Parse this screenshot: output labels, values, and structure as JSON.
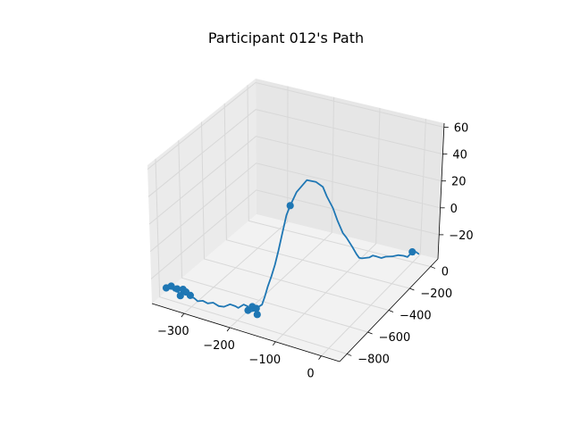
{
  "chart_data": {
    "type": "line3d",
    "title": "Participant 012's Path",
    "xlabel": "",
    "ylabel": "",
    "zlabel": "",
    "xlim": [
      -370,
      40
    ],
    "ylim": [
      -870,
      70
    ],
    "zlim": [
      -38,
      63
    ],
    "xticks": [
      -300,
      -200,
      -100,
      0
    ],
    "yticks": [
      0,
      -200,
      -400,
      -600,
      -800
    ],
    "zticks": [
      60,
      40,
      20,
      0,
      -20
    ],
    "grid": true,
    "colors": {
      "line": "#1f77b4",
      "pane": "#f2f2f2",
      "grid": "#d8d8d8"
    },
    "series": [
      {
        "x": [
          -350,
          -343,
          -335,
          -330,
          -322,
          -318,
          -312,
          -308,
          -300,
          -292,
          -285,
          -275,
          -265,
          -255,
          -245,
          -235,
          -225,
          -215,
          -210,
          -200,
          -193,
          -187,
          -180,
          -172,
          -165,
          -160,
          -155,
          -150,
          -145,
          -140,
          -135,
          -130,
          -126,
          -120,
          -110,
          -103,
          -98,
          -95,
          -90,
          -86,
          -80,
          -76,
          -70,
          -66,
          -63,
          -60,
          -55,
          -50,
          -45,
          -40,
          -32,
          -25,
          -15,
          -5,
          2,
          8,
          12,
          16,
          14,
          20,
          25
        ],
        "y": [
          -820,
          -815,
          -812,
          -818,
          -814,
          -820,
          -815,
          -819,
          -812,
          -810,
          -805,
          -800,
          -798,
          -790,
          -782,
          -775,
          -762,
          -754,
          -750,
          -742,
          -736,
          -740,
          -735,
          -730,
          -720,
          -712,
          -705,
          -690,
          -675,
          -660,
          -640,
          -620,
          -600,
          -565,
          -510,
          -460,
          -420,
          -400,
          -370,
          -350,
          -330,
          -315,
          -290,
          -272,
          -262,
          -250,
          -238,
          -225,
          -212,
          -200,
          -190,
          -180,
          -162,
          -148,
          -130,
          -120,
          -105,
          -95,
          -100,
          -92,
          -90
        ],
        "z": [
          -28,
          -26,
          -29,
          -27,
          -30,
          -28,
          -27,
          -26,
          -30,
          -30,
          -32,
          -31,
          -32,
          -31,
          -33,
          -33,
          -31,
          -32,
          -33,
          -30,
          -31,
          -34,
          -33,
          -30,
          -28,
          -22,
          -15,
          -8,
          0,
          10,
          22,
          34,
          40,
          48,
          54,
          50,
          44,
          36,
          26,
          16,
          6,
          2,
          -6,
          -12,
          -15,
          -16,
          -16,
          -16,
          -15,
          -16,
          -17,
          -16,
          -16,
          -15,
          -16,
          -17,
          -15,
          -16,
          -14,
          -14,
          -15
        ]
      }
    ],
    "markers": [
      {
        "x": -350,
        "y": -820,
        "z": -28
      },
      {
        "x": -340,
        "y": -815,
        "z": -26
      },
      {
        "x": -328,
        "y": -812,
        "z": -27
      },
      {
        "x": -315,
        "y": -812,
        "z": -26
      },
      {
        "x": -308,
        "y": -815,
        "z": -27
      },
      {
        "x": -300,
        "y": -810,
        "z": -29
      },
      {
        "x": -318,
        "y": -825,
        "z": -30
      },
      {
        "x": -182,
        "y": -738,
        "z": -30
      },
      {
        "x": -175,
        "y": -732,
        "z": -31
      },
      {
        "x": -190,
        "y": -745,
        "z": -33
      },
      {
        "x": -170,
        "y": -745,
        "z": -34
      },
      {
        "x": -126,
        "y": -600,
        "z": 40
      },
      {
        "x": 14,
        "y": -100,
        "z": -14
      }
    ]
  }
}
